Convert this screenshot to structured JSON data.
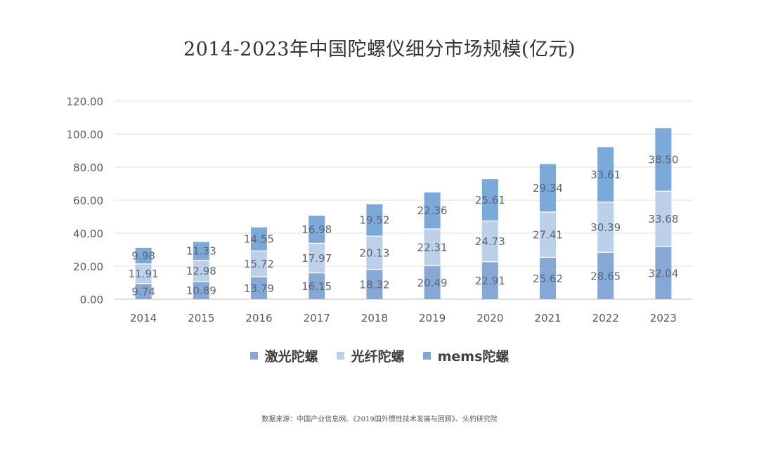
{
  "chart_data": {
    "type": "bar",
    "stacked": true,
    "title": "2014-2023年中国陀螺仪细分市场规模(亿元)",
    "categories": [
      "2014",
      "2015",
      "2016",
      "2017",
      "2018",
      "2019",
      "2020",
      "2021",
      "2022",
      "2023"
    ],
    "series": [
      {
        "name": "激光陀螺",
        "color": "#86a8d6",
        "values": [
          9.74,
          10.89,
          13.79,
          16.15,
          18.32,
          20.49,
          22.91,
          25.62,
          28.65,
          32.04
        ]
      },
      {
        "name": "光纤陀螺",
        "color": "#bcd0ea",
        "values": [
          11.91,
          12.98,
          15.72,
          17.97,
          20.13,
          22.31,
          24.73,
          27.41,
          30.39,
          33.68
        ]
      },
      {
        "name": "mems陀螺",
        "color": "#7aa9da",
        "values": [
          9.98,
          11.33,
          14.55,
          16.98,
          19.52,
          22.36,
          25.61,
          29.34,
          33.61,
          38.5
        ]
      }
    ],
    "y_ticks": [
      "0.00",
      "20.00",
      "40.00",
      "60.00",
      "80.00",
      "100.00",
      "120.00"
    ],
    "ylim": [
      0,
      120
    ],
    "grid": true,
    "legend_position": "bottom"
  },
  "source": "数据来源：中国产业信息网、《2019国外惯性技术发展与回顾》、头豹研究院"
}
